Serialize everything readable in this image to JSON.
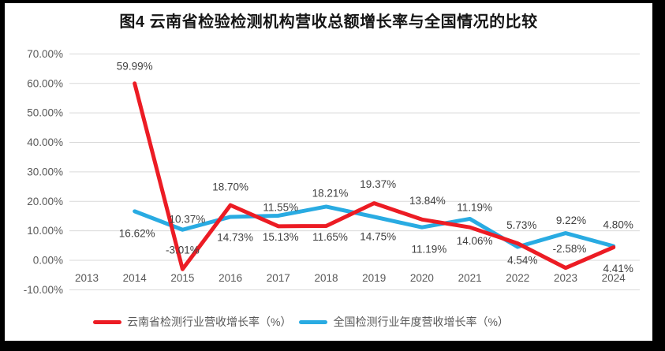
{
  "chart_data": {
    "type": "line",
    "title": "图4 云南省检验检测机构营收总额增长率与全国情况的比较",
    "categories": [
      "2013",
      "2014",
      "2015",
      "2016",
      "2017",
      "2018",
      "2019",
      "2020",
      "2021",
      "2022",
      "2023",
      "2024"
    ],
    "series": [
      {
        "key": "yunnan",
        "name": "云南省检测行业营收增长率（%）",
        "color": "#ec1c24",
        "values": [
          null,
          59.99,
          -3.01,
          18.7,
          11.55,
          11.65,
          19.37,
          13.84,
          11.19,
          5.73,
          -2.58,
          4.41
        ],
        "labels": [
          null,
          "59.99%",
          "-3.01%",
          "18.70%",
          "11.55%",
          "11.65%",
          "19.37%",
          "13.84%",
          "11.19%",
          "5.73%",
          "-2.58%",
          "4.41%"
        ]
      },
      {
        "key": "national",
        "name": "全国检测行业年度营收增长率（%）",
        "color": "#29abe2",
        "values": [
          null,
          16.62,
          10.37,
          14.73,
          15.13,
          18.21,
          14.75,
          11.19,
          14.06,
          4.54,
          9.22,
          4.8
        ],
        "labels": [
          null,
          "16.62%",
          "10.37%",
          "14.73%",
          "15.13%",
          "18.21%",
          "14.75%",
          "11.19%",
          "14.06%",
          "4.54%",
          "9.22%",
          "4.80%"
        ]
      }
    ],
    "y_axis": {
      "min": -10,
      "max": 70,
      "step": 10,
      "tick_labels": [
        "70.00%",
        "60.00%",
        "50.00%",
        "40.00%",
        "30.00%",
        "20.00%",
        "10.00%",
        "0.00%",
        "-10.00%"
      ]
    },
    "grid": true,
    "legend_position": "bottom",
    "colors": {
      "grid": "#d9d9d9",
      "axis_text": "#595959",
      "data_label_text": "#404040",
      "background": "#ffffff",
      "frame": "#000000"
    }
  }
}
